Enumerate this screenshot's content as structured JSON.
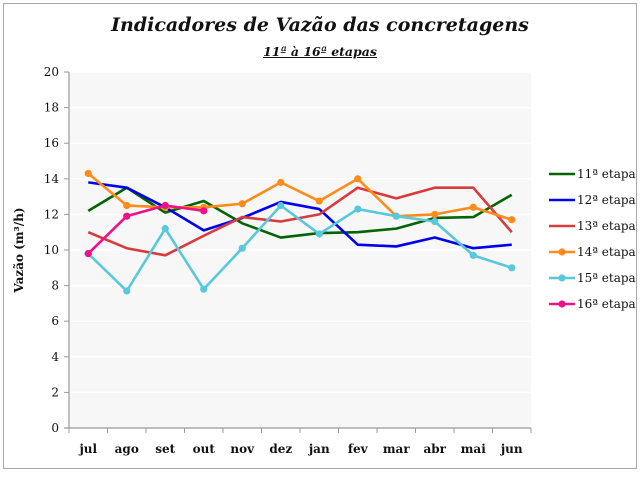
{
  "chart_data": {
    "type": "line",
    "title": "Indicadores de Vazão das concretagens",
    "subtitle": "11ª à 16ª etapas",
    "xlabel": "",
    "ylabel": "Vazão (m³/h)",
    "ylim": [
      0,
      20
    ],
    "yticks": [
      0,
      2,
      4,
      6,
      8,
      10,
      12,
      14,
      16,
      18,
      20
    ],
    "grid": true,
    "legend_position": "right",
    "categories": [
      "jul",
      "ago",
      "set",
      "out",
      "nov",
      "dez",
      "jan",
      "fev",
      "mar",
      "abr",
      "mai",
      "jun"
    ],
    "series": [
      {
        "name": "11ª etapa",
        "color": "#006400",
        "markers": false,
        "values": [
          12.2,
          13.5,
          12.1,
          12.75,
          11.5,
          10.7,
          10.95,
          11.0,
          11.2,
          11.8,
          11.85,
          13.1
        ]
      },
      {
        "name": "12ª etapa",
        "color": "#0000ee",
        "markers": false,
        "values": [
          13.8,
          13.5,
          12.4,
          11.1,
          11.8,
          12.7,
          12.3,
          10.3,
          10.2,
          10.7,
          10.1,
          10.3
        ]
      },
      {
        "name": "13ª etapa",
        "color": "#d83b3b",
        "markers": false,
        "values": [
          11.0,
          10.1,
          9.7,
          10.8,
          11.85,
          11.6,
          12.0,
          13.5,
          12.9,
          13.5,
          13.5,
          11.0
        ]
      },
      {
        "name": "14ª etapa",
        "color": "#ff8c1a",
        "markers": true,
        "values": [
          14.3,
          12.5,
          12.4,
          12.4,
          12.6,
          13.8,
          12.75,
          14.0,
          11.9,
          12.0,
          12.4,
          11.7
        ]
      },
      {
        "name": "15ª etapa",
        "color": "#5ac8dc",
        "markers": true,
        "values": [
          9.8,
          7.7,
          11.2,
          7.8,
          10.1,
          12.5,
          10.9,
          12.3,
          11.9,
          11.6,
          9.7,
          9.0
        ]
      },
      {
        "name": "16ª etapa",
        "color": "#ee1289",
        "markers": true,
        "values": [
          9.8,
          11.9,
          12.5,
          12.2,
          null,
          null,
          null,
          null,
          null,
          null,
          null,
          null
        ]
      }
    ]
  }
}
